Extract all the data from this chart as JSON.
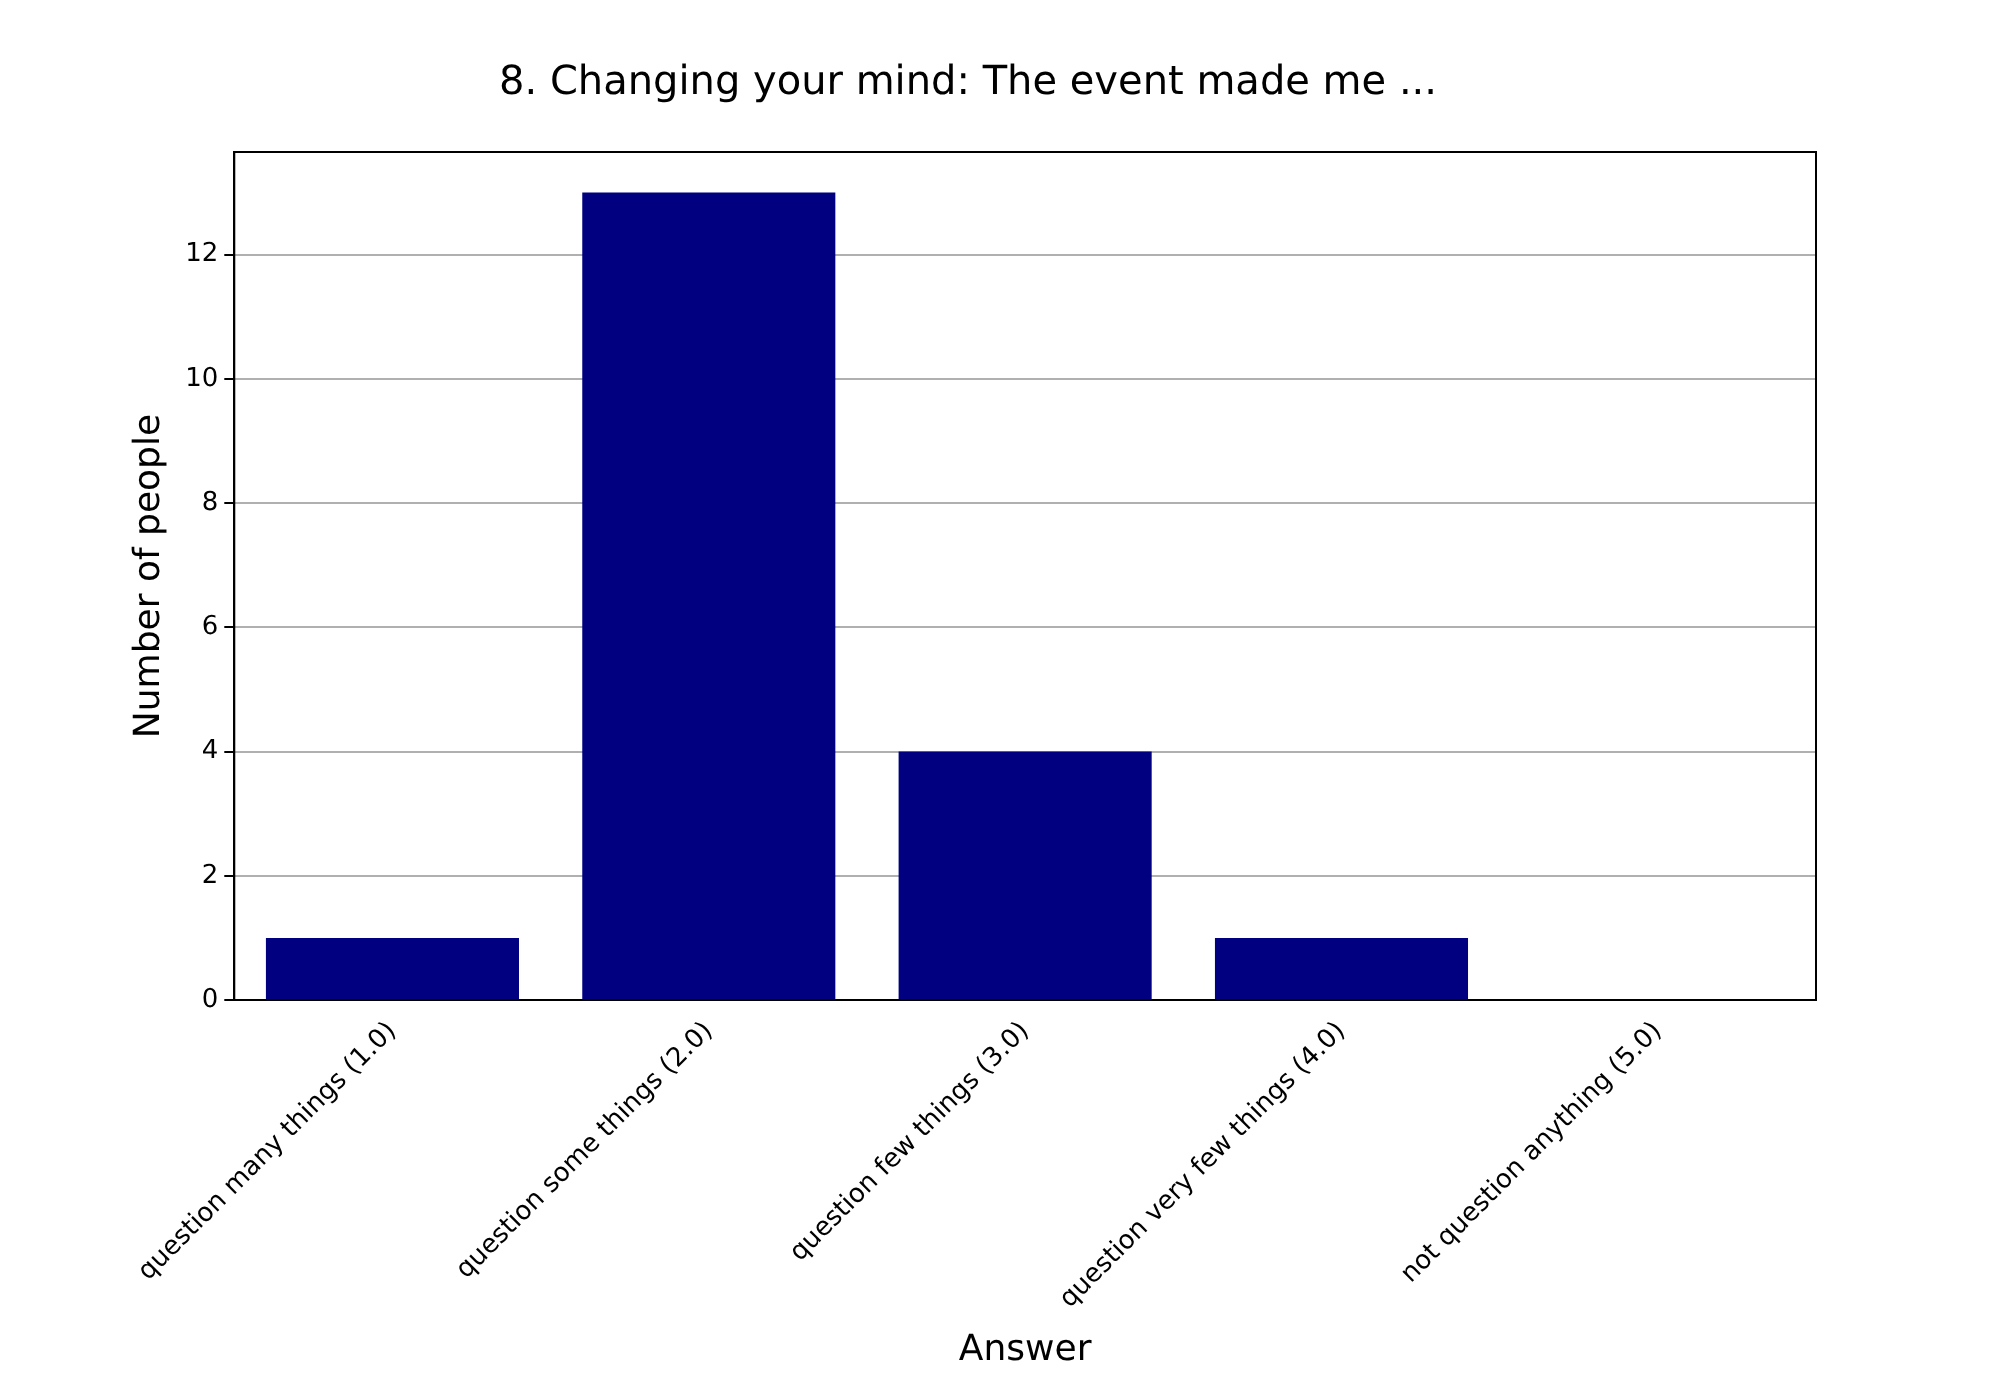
{
  "chart_data": {
    "type": "bar",
    "title": "8. Changing your mind: The event made me ...",
    "xlabel": "Answer",
    "ylabel": "Number of people",
    "categories": [
      "question many things (1.0)",
      "question some things (2.0)",
      "question few things (3.0)",
      "question very few things (4.0)",
      "not question anything (5.0)"
    ],
    "values": [
      1,
      13,
      4,
      1,
      0
    ],
    "color": "#000080",
    "ylim": [
      0,
      13.65
    ],
    "yticks": [
      0,
      2,
      4,
      6,
      8,
      10,
      12
    ],
    "grid": "y"
  }
}
